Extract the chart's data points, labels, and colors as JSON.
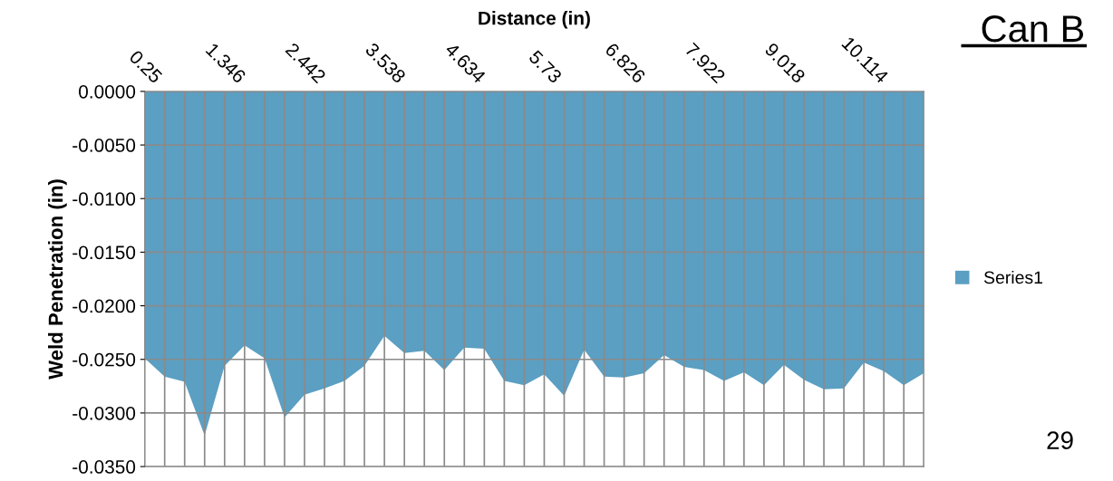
{
  "chart_data": {
    "type": "area",
    "title": "Can B",
    "xlabel": "Distance (in)",
    "ylabel": "Weld Penetration (in)",
    "categories": [
      "0.25",
      null,
      null,
      null,
      "1.346",
      null,
      null,
      null,
      "2.442",
      null,
      null,
      null,
      "3.538",
      null,
      null,
      null,
      "4.634",
      null,
      null,
      null,
      "5.73",
      null,
      null,
      null,
      "6.826",
      null,
      null,
      null,
      "7.922",
      null,
      null,
      null,
      "9.018",
      null,
      null,
      null,
      "10.114",
      null,
      null,
      null
    ],
    "series": [
      {
        "name": "Series1",
        "color": "#5b9fc2",
        "values": [
          -0.0249,
          -0.0266,
          -0.0271,
          -0.0321,
          -0.0256,
          -0.0237,
          -0.0249,
          -0.0304,
          -0.0283,
          -0.0277,
          -0.027,
          -0.0256,
          -0.0228,
          -0.0244,
          -0.0242,
          -0.026,
          -0.0239,
          -0.024,
          -0.027,
          -0.0274,
          -0.0264,
          -0.0284,
          -0.0241,
          -0.0266,
          -0.0267,
          -0.0263,
          -0.0246,
          -0.0257,
          -0.026,
          -0.027,
          -0.0262,
          -0.0274,
          -0.0255,
          -0.0269,
          -0.0278,
          -0.0277,
          -0.0253,
          -0.0261,
          -0.0274,
          -0.0263
        ]
      }
    ],
    "ylim": [
      -0.035,
      0
    ],
    "yticks": [
      {
        "value": 0,
        "label": "0.0000"
      },
      {
        "value": -0.005,
        "label": "-0.0050"
      },
      {
        "value": -0.01,
        "label": "-0.0100"
      },
      {
        "value": -0.015,
        "label": "-0.0150"
      },
      {
        "value": -0.02,
        "label": "-0.0200"
      },
      {
        "value": -0.025,
        "label": "-0.0250"
      },
      {
        "value": -0.03,
        "label": "-0.0300"
      },
      {
        "value": -0.035,
        "label": "-0.0350"
      }
    ],
    "grid": true,
    "legend": "right",
    "annotations": [
      "29"
    ]
  }
}
